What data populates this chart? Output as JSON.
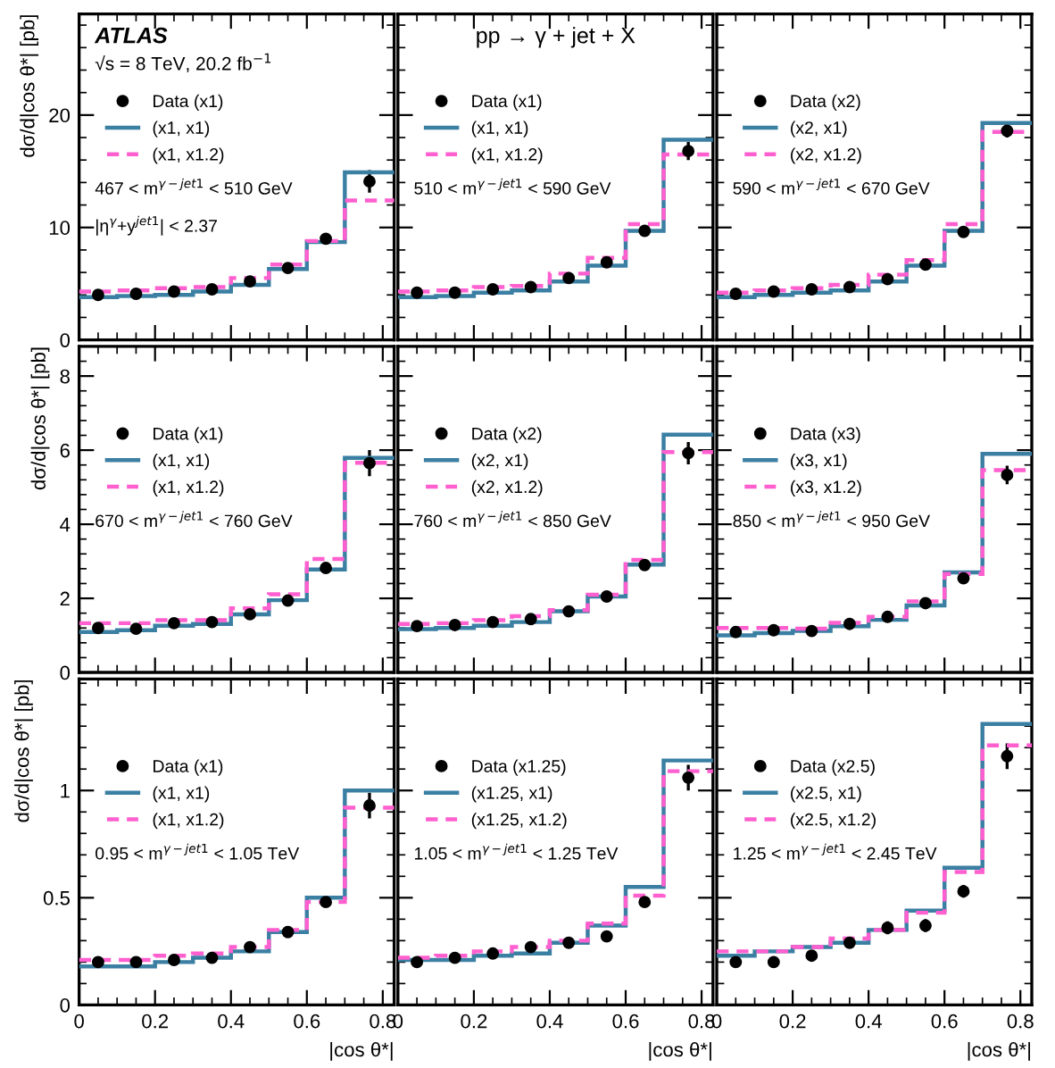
{
  "chart_data": [
    {
      "type": "scatter",
      "title": "ATLAS",
      "subtitle": "√s = 8 TeV, 20.2 fb$^{−1}$",
      "ylabel": "dσ/d|cos θ*| [pb]",
      "annotations": [
        "467 < m$^{γ−jet1}$ < 510 GeV",
        "|η$^{γ}$+y$^{jet1}$| < 2.37"
      ],
      "xlim": [
        0,
        0.83
      ],
      "xticks": [
        0,
        0.2,
        0.4,
        0.6,
        0.8
      ],
      "ylim": [
        0,
        29
      ],
      "yticks": [
        0,
        10,
        20
      ],
      "tick_labels": "y",
      "legend": "top left",
      "grid": false,
      "series": [
        {
          "name": "Data (x1)",
          "marker": "circle",
          "color": "#000000",
          "x": [
            0.05,
            0.15,
            0.25,
            0.35,
            0.45,
            0.55,
            0.65,
            0.765
          ],
          "values": [
            4.0,
            4.1,
            4.3,
            4.5,
            5.2,
            6.4,
            9.0,
            14.1
          ],
          "errors": [
            null,
            null,
            null,
            null,
            null,
            null,
            0.3,
            1.0
          ]
        },
        {
          "name": "(x1, x1)",
          "type": "step",
          "line_style": "solid",
          "color": "#3b7fa3",
          "x": [
            0,
            0.1,
            0.2,
            0.3,
            0.4,
            0.5,
            0.6,
            0.7
          ],
          "values": [
            3.8,
            3.9,
            4.0,
            4.3,
            4.9,
            6.3,
            8.7,
            14.9
          ]
        },
        {
          "name": "(x1, x1.2)",
          "type": "step",
          "line_style": "dashed",
          "color": "#ff5fcf",
          "x": [
            0,
            0.1,
            0.2,
            0.3,
            0.4,
            0.5,
            0.6,
            0.7
          ],
          "values": [
            4.3,
            4.4,
            4.6,
            4.7,
            5.5,
            6.7,
            8.8,
            12.4
          ]
        }
      ]
    },
    {
      "type": "scatter",
      "title": "pp → γ + jet + X",
      "annotations": [
        "510 < m$^{γ−jet1}$ < 590 GeV"
      ],
      "xlim": [
        0,
        0.83
      ],
      "xticks": [
        0,
        0.2,
        0.4,
        0.6,
        0.8
      ],
      "ylim": [
        0,
        29
      ],
      "yticks": [
        0,
        10,
        20
      ],
      "tick_labels": false,
      "legend": "top left",
      "grid": false,
      "series": [
        {
          "name": "Data (x1)",
          "marker": "circle",
          "color": "#000000",
          "x": [
            0.05,
            0.15,
            0.25,
            0.35,
            0.45,
            0.55,
            0.65,
            0.765
          ],
          "values": [
            4.2,
            4.2,
            4.5,
            4.7,
            5.5,
            6.9,
            9.7,
            16.8
          ],
          "errors": [
            null,
            null,
            null,
            null,
            null,
            null,
            0.3,
            0.8
          ]
        },
        {
          "name": "(x1, x1)",
          "type": "step",
          "line_style": "solid",
          "color": "#3b7fa3",
          "x": [
            0,
            0.1,
            0.2,
            0.3,
            0.4,
            0.5,
            0.6,
            0.7
          ],
          "values": [
            3.8,
            3.9,
            4.2,
            4.4,
            5.2,
            6.6,
            9.7,
            17.8
          ]
        },
        {
          "name": "(x1, x1.2)",
          "type": "step",
          "line_style": "dashed",
          "color": "#ff5fcf",
          "x": [
            0,
            0.1,
            0.2,
            0.3,
            0.4,
            0.5,
            0.6,
            0.7
          ],
          "values": [
            4.3,
            4.4,
            4.7,
            4.8,
            5.9,
            7.3,
            10.3,
            16.5
          ]
        }
      ]
    },
    {
      "type": "scatter",
      "annotations": [
        "590 < m$^{γ−jet1}$ < 670 GeV"
      ],
      "xlim": [
        0,
        0.83
      ],
      "xticks": [
        0,
        0.2,
        0.4,
        0.6,
        0.8
      ],
      "ylim": [
        0,
        29
      ],
      "yticks": [
        0,
        10,
        20
      ],
      "tick_labels": false,
      "legend": "top left",
      "grid": false,
      "series": [
        {
          "name": "Data (x2)",
          "marker": "circle",
          "color": "#000000",
          "x": [
            0.05,
            0.15,
            0.25,
            0.35,
            0.45,
            0.55,
            0.65,
            0.765
          ],
          "values": [
            4.1,
            4.3,
            4.5,
            4.7,
            5.4,
            6.7,
            9.6,
            18.6
          ],
          "errors": [
            null,
            null,
            null,
            null,
            null,
            null,
            0.3,
            0.6
          ]
        },
        {
          "name": "(x2, x1)",
          "type": "step",
          "line_style": "solid",
          "color": "#3b7fa3",
          "x": [
            0,
            0.1,
            0.2,
            0.3,
            0.4,
            0.5,
            0.6,
            0.7
          ],
          "values": [
            3.8,
            4.0,
            4.2,
            4.4,
            5.2,
            6.6,
            9.7,
            19.3
          ]
        },
        {
          "name": "(x2, x1.2)",
          "type": "step",
          "line_style": "dashed",
          "color": "#ff5fcf",
          "x": [
            0,
            0.1,
            0.2,
            0.3,
            0.4,
            0.5,
            0.6,
            0.7
          ],
          "values": [
            4.2,
            4.4,
            4.6,
            4.9,
            5.8,
            7.1,
            10.3,
            18.5
          ]
        }
      ]
    },
    {
      "type": "scatter",
      "ylabel": "dσ/d|cos θ*| [pb]",
      "annotations": [
        "670 < m$^{γ−jet1}$ < 760 GeV"
      ],
      "xlim": [
        0,
        0.83
      ],
      "xticks": [
        0,
        0.2,
        0.4,
        0.6,
        0.8
      ],
      "ylim": [
        0,
        8.8
      ],
      "yticks": [
        0,
        2,
        4,
        6,
        8
      ],
      "tick_labels": "y",
      "legend": "top left",
      "grid": false,
      "series": [
        {
          "name": "Data (x1)",
          "marker": "circle",
          "color": "#000000",
          "x": [
            0.05,
            0.15,
            0.25,
            0.35,
            0.45,
            0.55,
            0.65,
            0.765
          ],
          "values": [
            1.2,
            1.18,
            1.33,
            1.36,
            1.57,
            1.94,
            2.82,
            5.65
          ],
          "errors": [
            null,
            null,
            null,
            null,
            null,
            null,
            0.1,
            0.35
          ]
        },
        {
          "name": "(x1, x1)",
          "type": "step",
          "line_style": "solid",
          "color": "#3b7fa3",
          "x": [
            0,
            0.1,
            0.2,
            0.3,
            0.4,
            0.5,
            0.6,
            0.7
          ],
          "values": [
            1.09,
            1.14,
            1.26,
            1.31,
            1.57,
            1.95,
            2.78,
            5.79
          ]
        },
        {
          "name": "(x1, x1.2)",
          "type": "step",
          "line_style": "dashed",
          "color": "#ff5fcf",
          "x": [
            0,
            0.1,
            0.2,
            0.3,
            0.4,
            0.5,
            0.6,
            0.7
          ],
          "values": [
            1.33,
            1.33,
            1.41,
            1.41,
            1.73,
            2.11,
            3.06,
            5.66
          ]
        }
      ]
    },
    {
      "type": "scatter",
      "annotations": [
        "760 < m$^{γ−jet1}$ < 850 GeV"
      ],
      "xlim": [
        0,
        0.83
      ],
      "xticks": [
        0,
        0.2,
        0.4,
        0.6,
        0.8
      ],
      "ylim": [
        0,
        8.8
      ],
      "yticks": [
        0,
        2,
        4,
        6,
        8
      ],
      "tick_labels": false,
      "legend": "top left",
      "grid": false,
      "series": [
        {
          "name": "Data (x2)",
          "marker": "circle",
          "color": "#000000",
          "x": [
            0.05,
            0.15,
            0.25,
            0.35,
            0.45,
            0.55,
            0.65,
            0.765
          ],
          "values": [
            1.25,
            1.28,
            1.36,
            1.44,
            1.65,
            2.05,
            2.9,
            5.92
          ],
          "errors": [
            null,
            null,
            null,
            null,
            null,
            null,
            0.1,
            0.3
          ]
        },
        {
          "name": "(x2, x1)",
          "type": "step",
          "line_style": "solid",
          "color": "#3b7fa3",
          "x": [
            0,
            0.1,
            0.2,
            0.3,
            0.4,
            0.5,
            0.6,
            0.7
          ],
          "values": [
            1.17,
            1.2,
            1.26,
            1.36,
            1.65,
            2.05,
            2.91,
            6.42
          ]
        },
        {
          "name": "(x2, x1.2)",
          "type": "step",
          "line_style": "dashed",
          "color": "#ff5fcf",
          "x": [
            0,
            0.1,
            0.2,
            0.3,
            0.4,
            0.5,
            0.6,
            0.7
          ],
          "values": [
            1.31,
            1.33,
            1.41,
            1.52,
            1.68,
            2.1,
            3.04,
            5.95
          ]
        }
      ]
    },
    {
      "type": "scatter",
      "annotations": [
        "850 < m$^{γ−jet1}$ < 950 GeV"
      ],
      "xlim": [
        0,
        0.83
      ],
      "xticks": [
        0,
        0.2,
        0.4,
        0.6,
        0.8
      ],
      "ylim": [
        0,
        8.8
      ],
      "yticks": [
        0,
        2,
        4,
        6,
        8
      ],
      "tick_labels": false,
      "legend": "top left",
      "grid": false,
      "series": [
        {
          "name": "Data (x3)",
          "marker": "circle",
          "color": "#000000",
          "x": [
            0.05,
            0.15,
            0.25,
            0.35,
            0.45,
            0.55,
            0.65,
            0.765
          ],
          "values": [
            1.09,
            1.14,
            1.12,
            1.31,
            1.5,
            1.87,
            2.54,
            5.33
          ],
          "errors": [
            null,
            null,
            null,
            null,
            null,
            null,
            0.08,
            0.25
          ]
        },
        {
          "name": "(x3, x1)",
          "type": "step",
          "line_style": "solid",
          "color": "#3b7fa3",
          "x": [
            0,
            0.1,
            0.2,
            0.3,
            0.4,
            0.5,
            0.6,
            0.7
          ],
          "values": [
            1.0,
            1.06,
            1.12,
            1.25,
            1.42,
            1.81,
            2.7,
            5.9
          ]
        },
        {
          "name": "(x3, x1.2)",
          "type": "step",
          "line_style": "dashed",
          "color": "#ff5fcf",
          "x": [
            0,
            0.1,
            0.2,
            0.3,
            0.4,
            0.5,
            0.6,
            0.7
          ],
          "values": [
            1.2,
            1.2,
            1.18,
            1.34,
            1.5,
            1.92,
            2.66,
            5.46
          ]
        }
      ]
    },
    {
      "type": "scatter",
      "xlabel": "|cos θ*|",
      "ylabel": "dσ/d|cos θ*| [pb]",
      "annotations": [
        "0.95 < m$^{γ−jet1}$ < 1.05 TeV"
      ],
      "xlim": [
        0,
        0.83
      ],
      "xticks": [
        0,
        0.2,
        0.4,
        0.6,
        0.8
      ],
      "ylim": [
        0,
        1.52
      ],
      "yticks": [
        0,
        0.5,
        1
      ],
      "legend": "top left",
      "grid": false,
      "series": [
        {
          "name": "Data (x1)",
          "marker": "circle",
          "color": "#000000",
          "x": [
            0.05,
            0.15,
            0.25,
            0.35,
            0.45,
            0.55,
            0.65,
            0.765
          ],
          "values": [
            0.2,
            0.2,
            0.21,
            0.22,
            0.27,
            0.34,
            0.48,
            0.93
          ],
          "errors": [
            null,
            null,
            null,
            null,
            null,
            null,
            0.02,
            0.06
          ]
        },
        {
          "name": "(x1, x1)",
          "type": "step",
          "line_style": "solid",
          "color": "#3b7fa3",
          "x": [
            0,
            0.1,
            0.2,
            0.3,
            0.4,
            0.5,
            0.6,
            0.7
          ],
          "values": [
            0.18,
            0.18,
            0.2,
            0.22,
            0.25,
            0.34,
            0.5,
            1.0
          ]
        },
        {
          "name": "(x1, x1.2)",
          "type": "step",
          "line_style": "dashed",
          "color": "#ff5fcf",
          "x": [
            0,
            0.1,
            0.2,
            0.3,
            0.4,
            0.5,
            0.6,
            0.7
          ],
          "values": [
            0.21,
            0.21,
            0.23,
            0.24,
            0.27,
            0.35,
            0.48,
            0.92
          ]
        }
      ]
    },
    {
      "type": "scatter",
      "xlabel": "|cos θ*|",
      "annotations": [
        "1.05 < m$^{γ−jet1}$ < 1.25 TeV"
      ],
      "xlim": [
        0,
        0.83
      ],
      "xticks": [
        0,
        0.2,
        0.4,
        0.6,
        0.8
      ],
      "ylim": [
        0,
        1.52
      ],
      "yticks": [
        0,
        0.5,
        1
      ],
      "tick_labels": "x",
      "legend": "top left",
      "grid": false,
      "series": [
        {
          "name": "Data (x1.25)",
          "marker": "circle",
          "color": "#000000",
          "x": [
            0.05,
            0.15,
            0.25,
            0.35,
            0.45,
            0.55,
            0.65,
            0.765
          ],
          "values": [
            0.2,
            0.22,
            0.24,
            0.27,
            0.29,
            0.32,
            0.48,
            1.06
          ],
          "errors": [
            null,
            null,
            null,
            null,
            null,
            null,
            0.02,
            0.06
          ]
        },
        {
          "name": "(x1.25, x1)",
          "type": "step",
          "line_style": "solid",
          "color": "#3b7fa3",
          "x": [
            0,
            0.1,
            0.2,
            0.3,
            0.4,
            0.5,
            0.6,
            0.7
          ],
          "values": [
            0.21,
            0.21,
            0.23,
            0.24,
            0.29,
            0.37,
            0.55,
            1.14
          ]
        },
        {
          "name": "(x1.25, x1.2)",
          "type": "step",
          "line_style": "dashed",
          "color": "#ff5fcf",
          "x": [
            0,
            0.1,
            0.2,
            0.3,
            0.4,
            0.5,
            0.6,
            0.7
          ],
          "values": [
            0.22,
            0.23,
            0.25,
            0.27,
            0.3,
            0.38,
            0.51,
            1.09
          ]
        }
      ]
    },
    {
      "type": "scatter",
      "xlabel": "|cos θ*|",
      "annotations": [
        "1.25 < m$^{γ−jet1}$ < 2.45 TeV"
      ],
      "xlim": [
        0,
        0.83
      ],
      "xticks": [
        0,
        0.2,
        0.4,
        0.6,
        0.8
      ],
      "ylim": [
        0,
        1.52
      ],
      "yticks": [
        0,
        0.5,
        1
      ],
      "tick_labels": "x",
      "legend": "top left",
      "grid": false,
      "series": [
        {
          "name": "Data (x2.5)",
          "marker": "circle",
          "color": "#000000",
          "x": [
            0.05,
            0.15,
            0.25,
            0.35,
            0.45,
            0.55,
            0.65,
            0.765
          ],
          "values": [
            0.2,
            0.2,
            0.23,
            0.29,
            0.36,
            0.37,
            0.53,
            1.16
          ],
          "errors": [
            0.02,
            0.02,
            0.02,
            0.02,
            0.03,
            0.03,
            0.03,
            0.06
          ]
        },
        {
          "name": "(x2.5, x1)",
          "type": "step",
          "line_style": "solid",
          "color": "#3b7fa3",
          "x": [
            0,
            0.1,
            0.2,
            0.3,
            0.4,
            0.5,
            0.6,
            0.7
          ],
          "values": [
            0.23,
            0.25,
            0.27,
            0.29,
            0.35,
            0.44,
            0.64,
            1.31
          ]
        },
        {
          "name": "(x2.5, x1.2)",
          "type": "step",
          "line_style": "dashed",
          "color": "#ff5fcf",
          "x": [
            0,
            0.1,
            0.2,
            0.3,
            0.4,
            0.5,
            0.6,
            0.7
          ],
          "values": [
            0.25,
            0.25,
            0.27,
            0.31,
            0.35,
            0.43,
            0.62,
            1.21
          ]
        }
      ]
    }
  ]
}
